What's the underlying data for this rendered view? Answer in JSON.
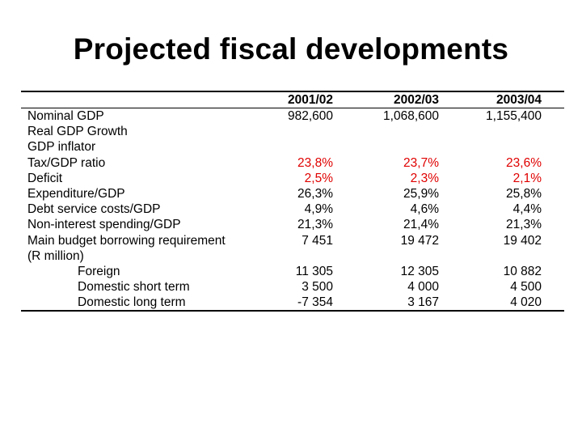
{
  "slide": {
    "title": "Projected fiscal developments"
  },
  "table": {
    "headers": [
      "2001/02",
      "2002/03",
      "2003/04"
    ],
    "rows": [
      {
        "label": "Nominal GDP",
        "values": [
          "982,600",
          "1,068,600",
          "1,155,400"
        ],
        "highlight": false,
        "indent": false
      },
      {
        "label": "Real GDP Growth",
        "values": [
          "",
          "",
          ""
        ],
        "highlight": false,
        "indent": false
      },
      {
        "label": "GDP inflator",
        "values": [
          "",
          "",
          ""
        ],
        "highlight": false,
        "indent": false
      },
      {
        "label": "Tax/GDP ratio",
        "values": [
          "23,8%",
          "23,7%",
          "23,6%"
        ],
        "highlight": true,
        "indent": false
      },
      {
        "label": "Deficit",
        "values": [
          "2,5%",
          "2,3%",
          "2,1%"
        ],
        "highlight": true,
        "indent": false
      },
      {
        "label": "Expenditure/GDP",
        "values": [
          "26,3%",
          "25,9%",
          "25,8%"
        ],
        "highlight": false,
        "indent": false
      },
      {
        "label": "Debt service costs/GDP",
        "values": [
          "4,9%",
          "4,6%",
          "4,4%"
        ],
        "highlight": false,
        "indent": false
      },
      {
        "label": "Non-interest spending/GDP",
        "values": [
          "21,3%",
          "21,4%",
          "21,3%"
        ],
        "highlight": false,
        "indent": false
      },
      {
        "label": "Main budget borrowing requirement",
        "values": [
          "7 451",
          "19 472",
          "19 402"
        ],
        "highlight": false,
        "indent": false
      },
      {
        "label": "(R million)",
        "values": [
          "",
          "",
          ""
        ],
        "highlight": false,
        "indent": false
      },
      {
        "label": "Foreign",
        "values": [
          "11 305",
          "12 305",
          "10 882"
        ],
        "highlight": false,
        "indent": true
      },
      {
        "label": "Domestic short term",
        "values": [
          "3 500",
          "4 000",
          "4 500"
        ],
        "highlight": false,
        "indent": true
      },
      {
        "label": "Domestic long term",
        "values": [
          "-7 354",
          "3 167",
          "4 020"
        ],
        "highlight": false,
        "indent": true
      }
    ],
    "highlight_color": "#e00000"
  }
}
